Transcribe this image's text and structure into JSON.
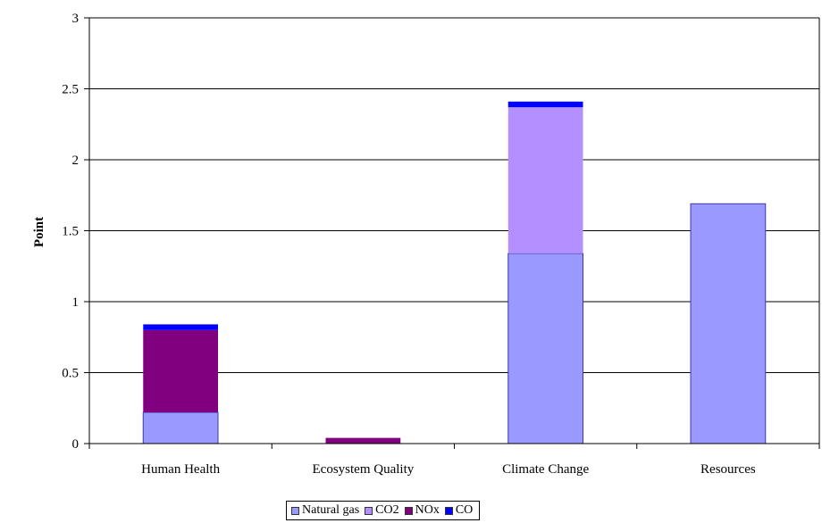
{
  "chart_data": {
    "type": "bar",
    "stacked": true,
    "title": "",
    "xlabel": "",
    "ylabel": "Point",
    "ylim": [
      0,
      3
    ],
    "yticks": [
      "0",
      "0.5",
      "1",
      "1.5",
      "2",
      "2.5",
      "3"
    ],
    "grid": true,
    "legend_position": "bottom",
    "categories": [
      "Human Health",
      "Ecosystem Quality",
      "Climate Change",
      "Resources"
    ],
    "series": [
      {
        "name": "Natural gas",
        "color": "#9999FF",
        "values": [
          0.22,
          0.0,
          1.34,
          1.69
        ]
      },
      {
        "name": "CO2",
        "color": "#B38FFF",
        "values": [
          0.0,
          0.0,
          1.03,
          0.0
        ]
      },
      {
        "name": "NOx",
        "color": "#800080",
        "values": [
          0.58,
          0.04,
          0.0,
          0.0
        ]
      },
      {
        "name": "CO",
        "color": "#0000FF",
        "values": [
          0.04,
          0.0,
          0.04,
          0.0
        ]
      }
    ]
  }
}
